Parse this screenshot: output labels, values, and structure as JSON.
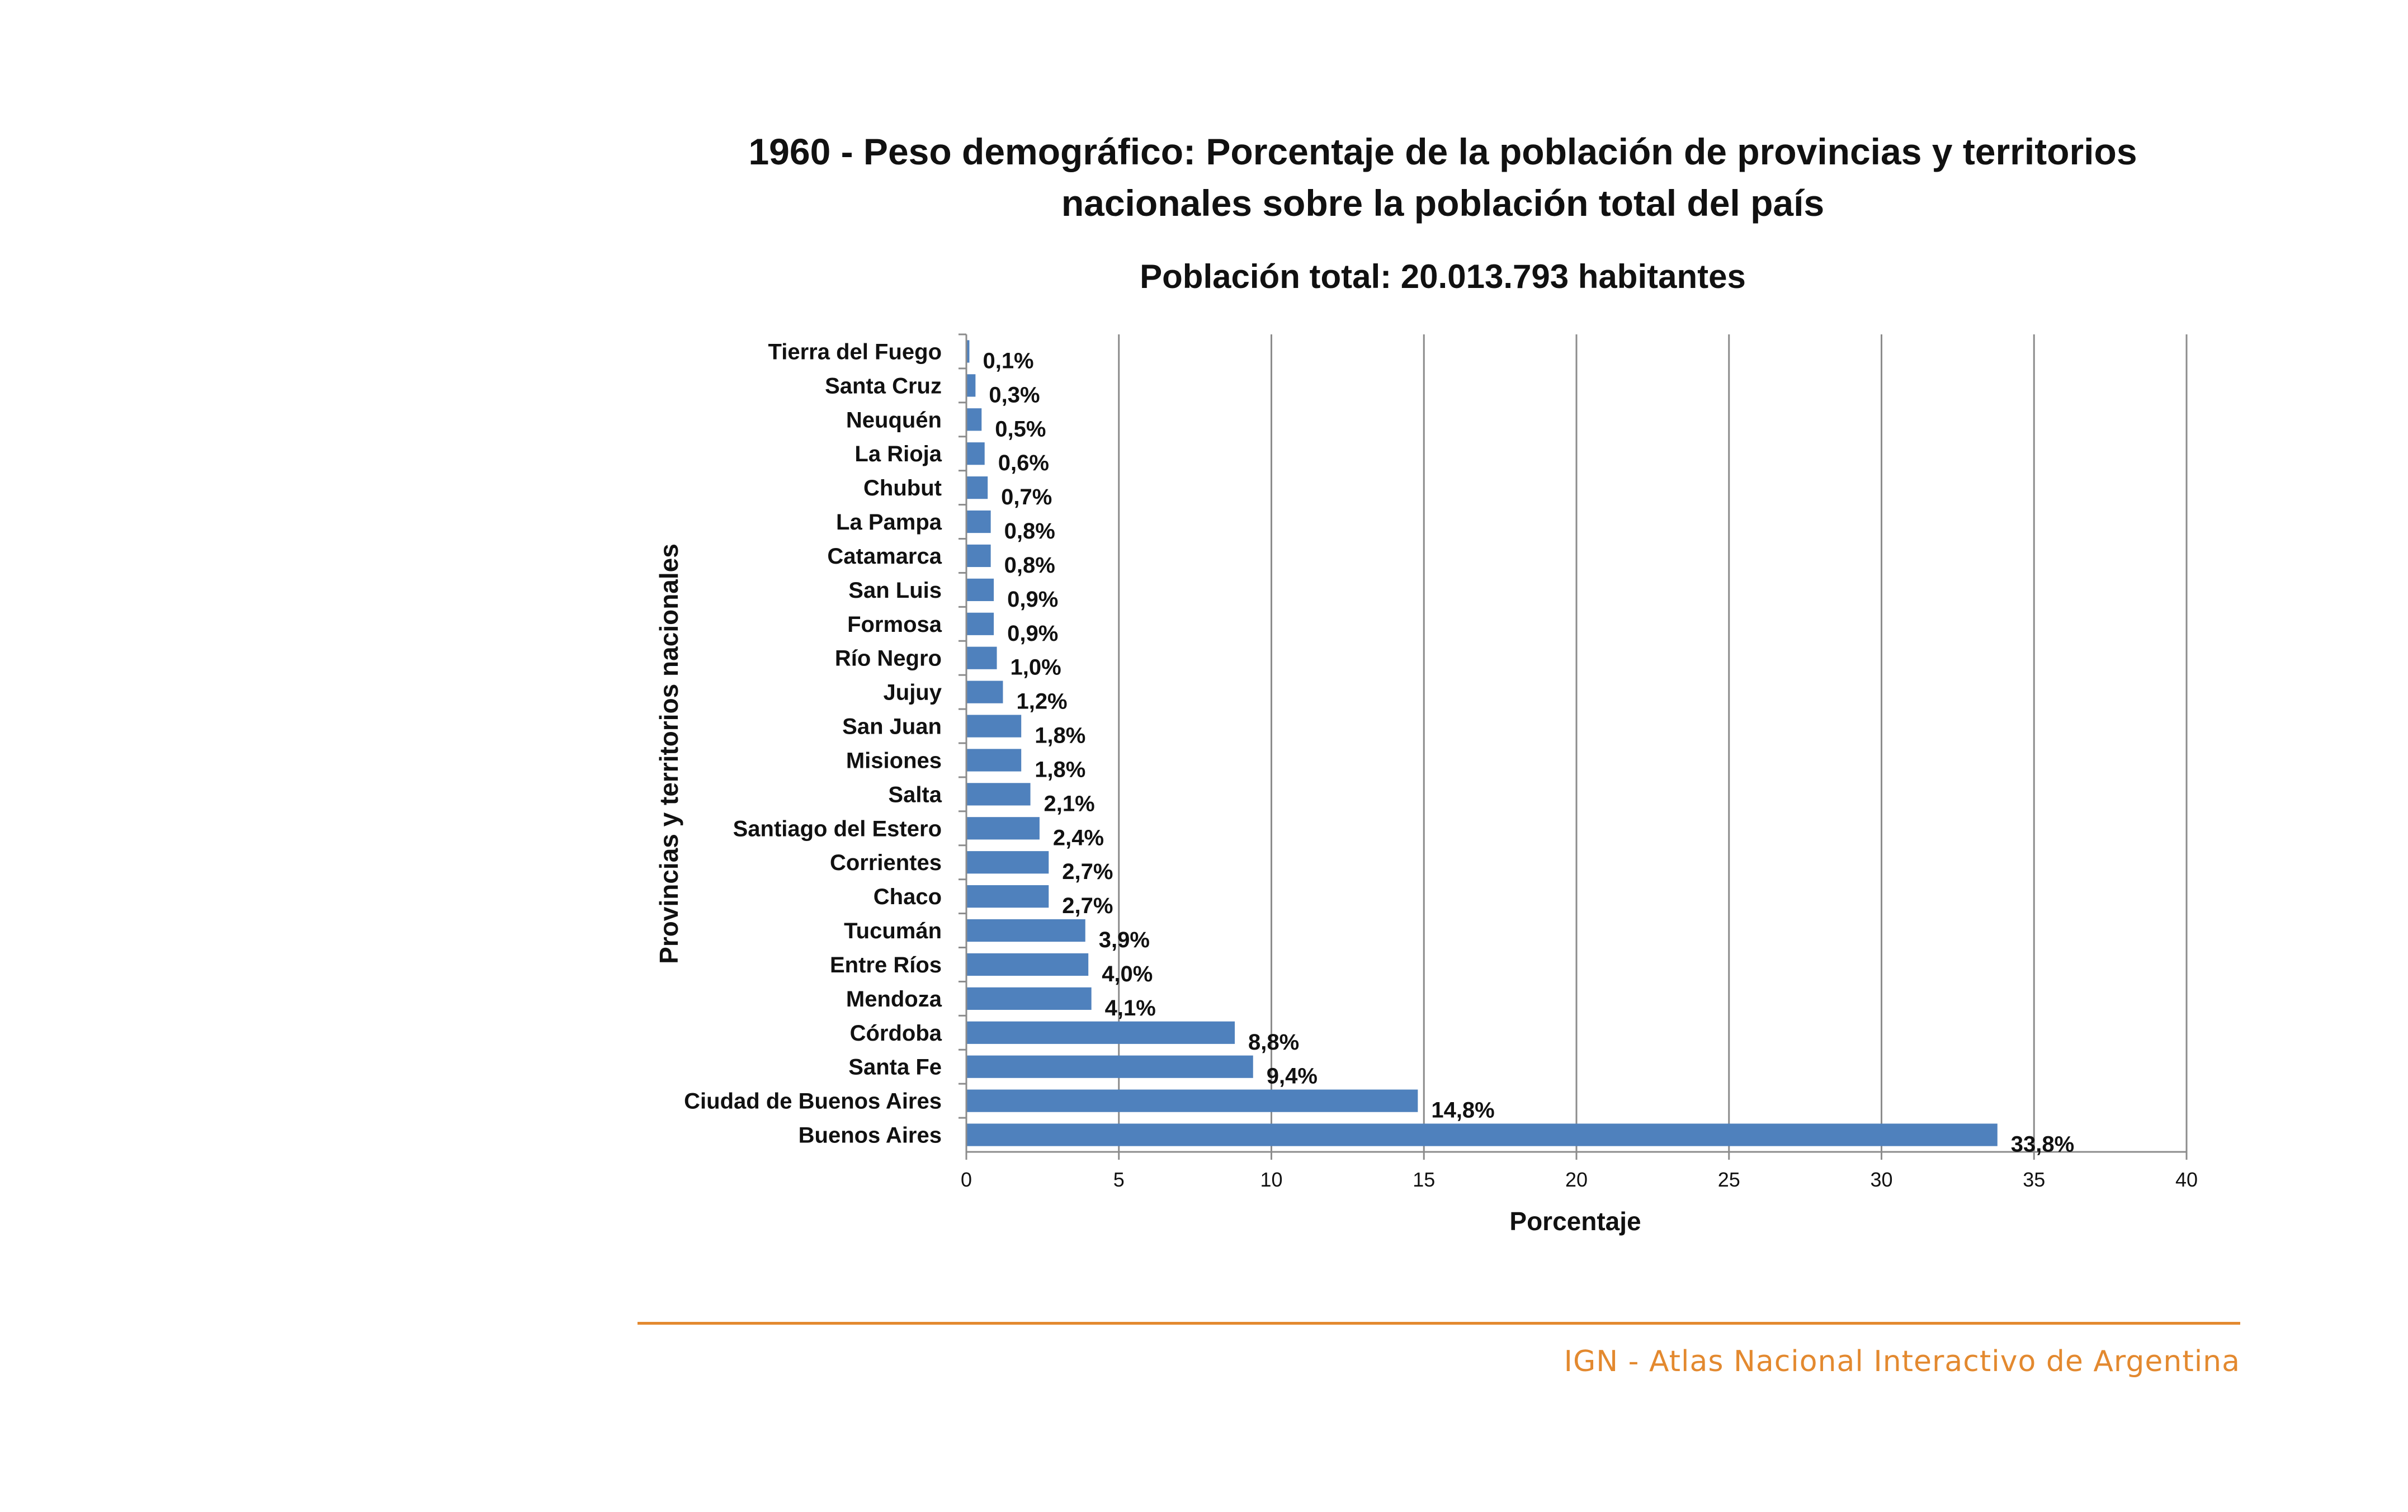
{
  "chart_data": {
    "type": "bar",
    "orientation": "horizontal",
    "title": "1960 - Peso demográfico: Porcentaje de la población de provincias y territorios nacionales sobre la población total del país",
    "subtitle": "Población total: 20.013.793 habitantes",
    "xlabel": "Porcentaje",
    "ylabel": "Provincias y territorios nacionales",
    "xlim": [
      0,
      40
    ],
    "xticks": [
      "0",
      "5",
      "10",
      "15",
      "20",
      "25",
      "30",
      "35",
      "40"
    ],
    "grid": "vertical",
    "bar_color": "#4f81bd",
    "categories": [
      "Tierra del Fuego",
      "Santa Cruz",
      "Neuquén",
      "La Rioja",
      "Chubut",
      "La Pampa",
      "Catamarca",
      "San Luis",
      "Formosa",
      "Río Negro",
      "Jujuy",
      "San Juan",
      "Misiones",
      "Salta",
      "Santiago del Estero",
      "Corrientes",
      "Chaco",
      "Tucumán",
      "Entre Ríos",
      "Mendoza",
      "Córdoba",
      "Santa Fe",
      "Ciudad de Buenos Aires",
      "Buenos Aires"
    ],
    "values": [
      0.1,
      0.3,
      0.5,
      0.6,
      0.7,
      0.8,
      0.8,
      0.9,
      0.9,
      1.0,
      1.2,
      1.8,
      1.8,
      2.1,
      2.4,
      2.7,
      2.7,
      3.9,
      4.0,
      4.1,
      8.8,
      9.4,
      14.8,
      33.8
    ],
    "value_labels": [
      "0,1%",
      "0,3%",
      "0,5%",
      "0,6%",
      "0,7%",
      "0,8%",
      "0,8%",
      "0,9%",
      "0,9%",
      "1,0%",
      "1,2%",
      "1,8%",
      "1,8%",
      "2,1%",
      "2,4%",
      "2,7%",
      "2,7%",
      "3,9%",
      "4,0%",
      "4,1%",
      "8,8%",
      "9,4%",
      "14,8%",
      "33,8%"
    ]
  },
  "footer": {
    "text": "IGN - Atlas Nacional Interactivo de Argentina",
    "color": "#e3892f"
  }
}
